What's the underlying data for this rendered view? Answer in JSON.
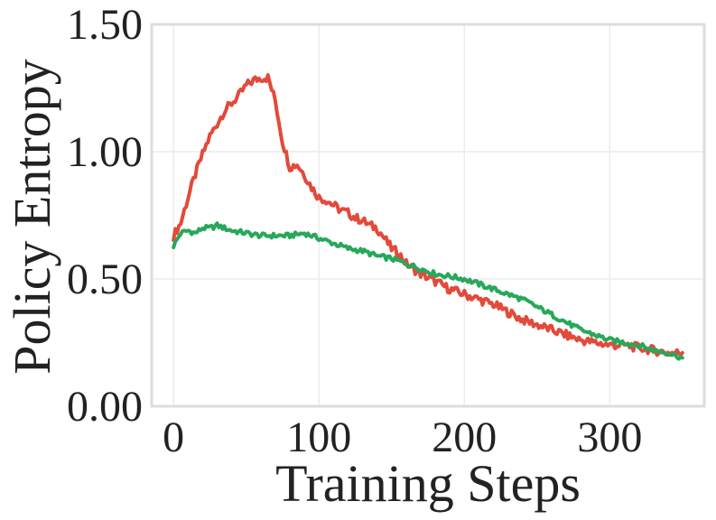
{
  "chart_data": {
    "type": "line",
    "title": "",
    "xlabel": "Training Steps",
    "ylabel": "Policy Entropy",
    "xlim": [
      -15,
      365
    ],
    "ylim": [
      0.0,
      1.5
    ],
    "xticks": [
      0,
      100,
      200,
      300
    ],
    "xtick_labels": [
      "0",
      "100",
      "200",
      "300"
    ],
    "yticks": [
      0.0,
      0.5,
      1.0,
      1.5
    ],
    "ytick_labels": [
      "0.00",
      "0.50",
      "1.00",
      "1.50"
    ],
    "grid": true,
    "legend": "none",
    "series": [
      {
        "color": "#e24a3b",
        "x": [
          0,
          5,
          10,
          15,
          20,
          25,
          30,
          35,
          40,
          45,
          50,
          55,
          60,
          65,
          70,
          75,
          80,
          85,
          90,
          95,
          100,
          105,
          110,
          115,
          120,
          125,
          130,
          135,
          140,
          145,
          150,
          155,
          160,
          170,
          180,
          190,
          200,
          210,
          220,
          230,
          240,
          250,
          260,
          270,
          280,
          290,
          300,
          310,
          320,
          330,
          340,
          350
        ],
        "y": [
          0.67,
          0.72,
          0.82,
          0.91,
          0.99,
          1.06,
          1.11,
          1.16,
          1.19,
          1.22,
          1.26,
          1.28,
          1.29,
          1.29,
          1.2,
          1.04,
          0.94,
          0.95,
          0.91,
          0.86,
          0.82,
          0.81,
          0.79,
          0.77,
          0.76,
          0.74,
          0.73,
          0.71,
          0.7,
          0.66,
          0.62,
          0.6,
          0.56,
          0.52,
          0.49,
          0.46,
          0.44,
          0.42,
          0.4,
          0.37,
          0.34,
          0.32,
          0.3,
          0.28,
          0.26,
          0.25,
          0.24,
          0.24,
          0.23,
          0.22,
          0.21,
          0.21
        ]
      },
      {
        "color": "#27a85a",
        "x": [
          0,
          5,
          10,
          15,
          20,
          25,
          30,
          40,
          50,
          60,
          70,
          80,
          90,
          100,
          110,
          120,
          130,
          140,
          150,
          160,
          170,
          180,
          190,
          200,
          210,
          220,
          230,
          240,
          250,
          260,
          270,
          280,
          290,
          300,
          310,
          320,
          330,
          340,
          350
        ],
        "y": [
          0.63,
          0.68,
          0.69,
          0.68,
          0.7,
          0.7,
          0.71,
          0.69,
          0.68,
          0.67,
          0.67,
          0.67,
          0.68,
          0.66,
          0.64,
          0.62,
          0.61,
          0.59,
          0.58,
          0.56,
          0.54,
          0.52,
          0.51,
          0.5,
          0.48,
          0.46,
          0.44,
          0.42,
          0.39,
          0.36,
          0.33,
          0.3,
          0.28,
          0.26,
          0.25,
          0.24,
          0.22,
          0.21,
          0.19
        ]
      }
    ]
  }
}
